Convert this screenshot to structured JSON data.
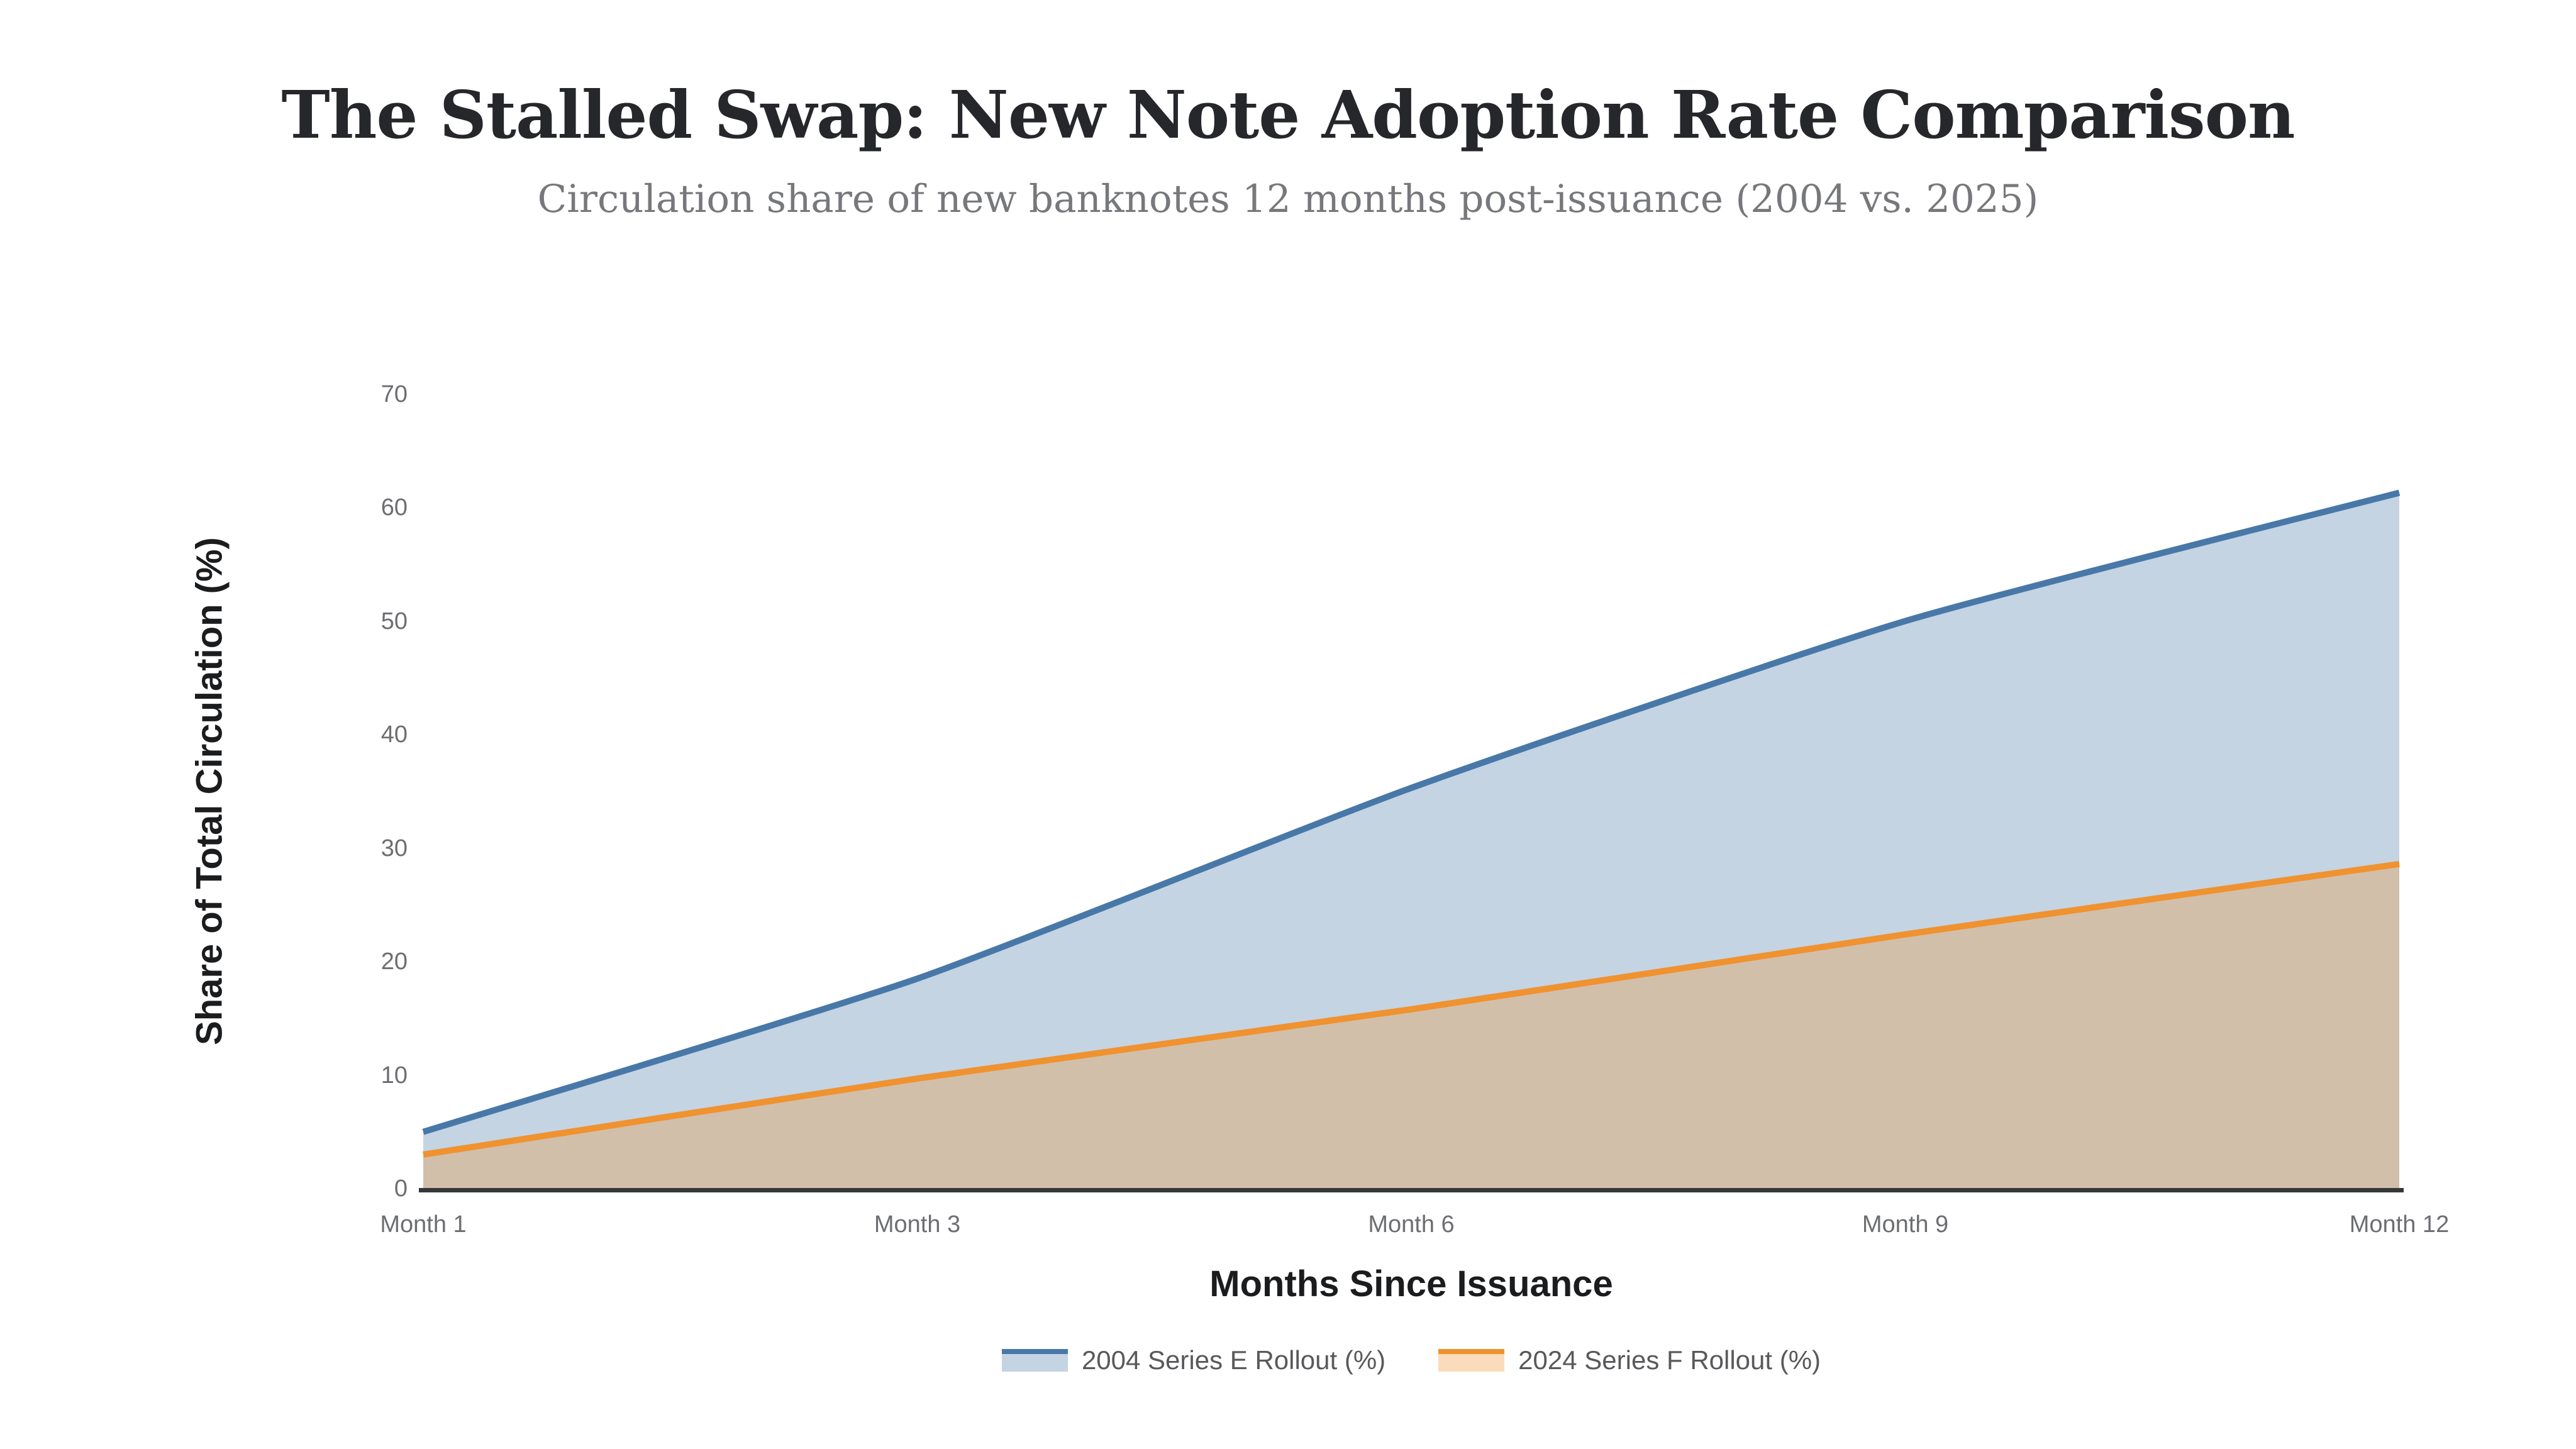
{
  "chart_data": {
    "type": "area",
    "title": "The Stalled Swap: New Note Adoption Rate Comparison",
    "subtitle": "Circulation share of new banknotes 12 months post-issuance (2004 vs. 2025)",
    "xlabel": "Months Since Issuance",
    "ylabel": "Share of Total Circulation (%)",
    "categories": [
      "Month 1",
      "Month 3",
      "Month 6",
      "Month 9",
      "Month 12"
    ],
    "y_ticks": [
      0,
      10,
      20,
      30,
      40,
      50,
      60,
      70
    ],
    "ylim": [
      0,
      70
    ],
    "grid": false,
    "legend_position": "bottom",
    "series": [
      {
        "name": "2004 Series E Rollout (%)",
        "line_color": "#4878a8",
        "fill_color": "rgba(72,120,168,0.32)",
        "values": [
          5,
          18.5,
          35.3,
          50,
          61.3
        ]
      },
      {
        "name": "2024 Series F Rollout (%)",
        "line_color": "#f0922f",
        "fill_color": "rgba(240,146,47,0.32)",
        "values": [
          3,
          9.7,
          15.8,
          22.4,
          28.6
        ]
      }
    ],
    "colors": {
      "axis_line": "#363738",
      "tick_label": "#6d6e71",
      "axis_title": "#1b1c1e",
      "title_text": "#26272b",
      "subtitle_text": "#77787b",
      "legend_text": "#58595c"
    }
  }
}
